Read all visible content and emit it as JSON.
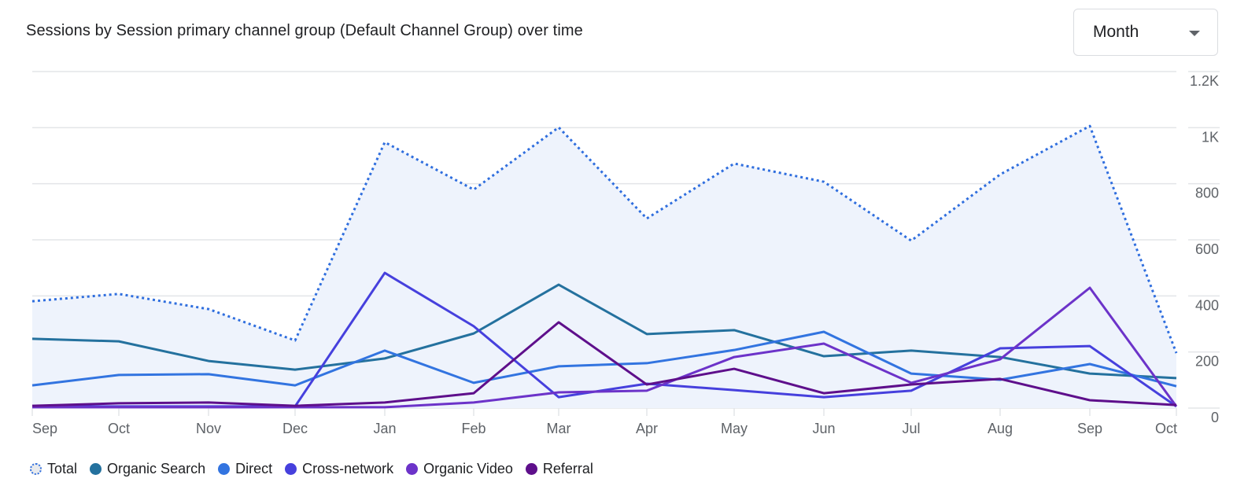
{
  "header": {
    "title": "Sessions by Session primary channel group (Default Channel Group) over time",
    "granularity_dropdown": {
      "selected": "Month",
      "icon": "caret-down-icon"
    }
  },
  "chart_data": {
    "type": "line",
    "title": "Sessions by Session primary channel group (Default Channel Group) over time",
    "xlabel": "",
    "ylabel": "",
    "categories": [
      "Sep",
      "Oct",
      "Nov",
      "Dec",
      "Jan",
      "Feb",
      "Mar",
      "Apr",
      "May",
      "Jun",
      "Jul",
      "Aug",
      "Sep",
      "Oct"
    ],
    "ylim": [
      0,
      1200
    ],
    "y_ticks": [
      0,
      200,
      400,
      600,
      800,
      1000,
      1200
    ],
    "y_tick_labels": [
      "0",
      "200",
      "400",
      "600",
      "800",
      "1K",
      "1.2K"
    ],
    "y_axis_position": "right",
    "grid": true,
    "legend_position": "bottom-left",
    "series": [
      {
        "name": "Total",
        "color": "#2f6ede",
        "style": "dotted",
        "area_fill": "#eef3fc",
        "values": [
          381,
          407,
          353,
          241,
          948,
          779,
          1001,
          676,
          872,
          807,
          597,
          833,
          1006,
          196
        ]
      },
      {
        "name": "Organic Search",
        "color": "#24719e",
        "style": "solid",
        "values": [
          247,
          238,
          168,
          137,
          177,
          266,
          440,
          264,
          278,
          185,
          205,
          182,
          123,
          107
        ]
      },
      {
        "name": "Direct",
        "color": "#3274e0",
        "style": "solid",
        "values": [
          81,
          118,
          121,
          81,
          205,
          90,
          149,
          160,
          207,
          272,
          123,
          101,
          157,
          78
        ]
      },
      {
        "name": "Cross-network",
        "color": "#4640dd",
        "style": "solid",
        "values": [
          6,
          6,
          6,
          6,
          482,
          292,
          39,
          87,
          64,
          39,
          62,
          213,
          221,
          6
        ]
      },
      {
        "name": "Organic Video",
        "color": "#6c33c9",
        "style": "solid",
        "values": [
          3,
          3,
          3,
          3,
          3,
          20,
          56,
          62,
          182,
          230,
          90,
          174,
          429,
          6
        ]
      },
      {
        "name": "Referral",
        "color": "#5e0f8b",
        "style": "solid",
        "values": [
          8,
          17,
          20,
          8,
          20,
          53,
          306,
          84,
          140,
          53,
          84,
          104,
          28,
          11
        ]
      }
    ]
  }
}
